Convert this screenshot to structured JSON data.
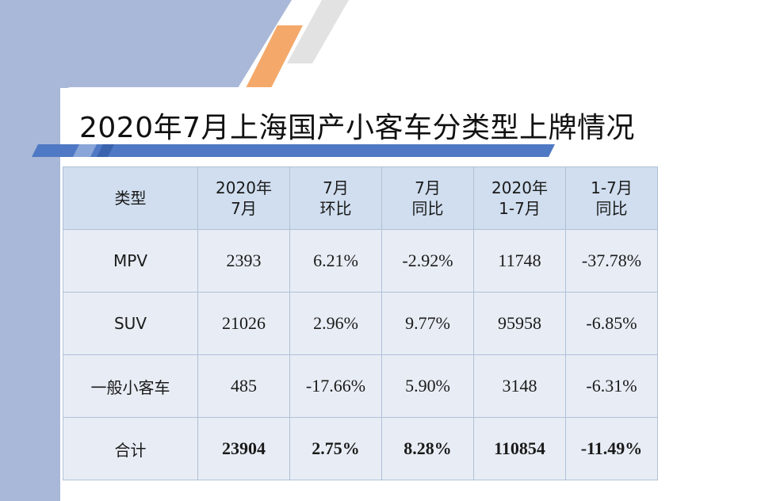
{
  "title": "2020年7月上海国产小客车分类型上牌情况",
  "colors": {
    "sidebar": "#a9b8d8",
    "accent_orange": "#f4a96b",
    "header_fill": "#d0deef",
    "cell_fill": "#e8edf5",
    "title_bar": "#4f79c4"
  },
  "table": {
    "headers": [
      {
        "line1": "类型",
        "line2": ""
      },
      {
        "line1": "2020年",
        "line2": "7月"
      },
      {
        "line1": "7月",
        "line2": "环比"
      },
      {
        "line1": "7月",
        "line2": "同比"
      },
      {
        "line1": "2020年",
        "line2": "1-7月"
      },
      {
        "line1": "1-7月",
        "line2": "同比"
      }
    ],
    "rows": [
      [
        "MPV",
        "2393",
        "6.21%",
        "-2.92%",
        "11748",
        "-37.78%"
      ],
      [
        "SUV",
        "21026",
        "2.96%",
        "9.77%",
        "95958",
        "-6.85%"
      ],
      [
        "一般小客车",
        "485",
        "-17.66%",
        "5.90%",
        "3148",
        "-6.31%"
      ],
      [
        "合计",
        "23904",
        "2.75%",
        "8.28%",
        "110854",
        "-11.49%"
      ]
    ]
  }
}
